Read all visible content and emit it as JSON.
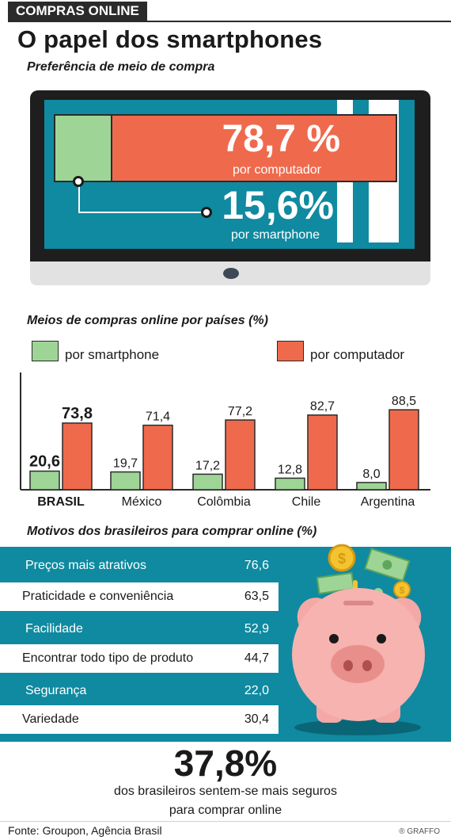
{
  "header": {
    "section_tag": "COMPRAS ONLINE",
    "title": "O papel dos smartphones"
  },
  "preference": {
    "subtitle": "Preferência de meio de compra",
    "computer_pct": "78,7 %",
    "computer_label": "por computador",
    "smartphone_pct": "15,6%",
    "smartphone_label": "por smartphone",
    "computer_value": 78.7,
    "smartphone_value": 15.6
  },
  "chart_data": {
    "type": "bar",
    "title": "Meios de compras online por países (%)",
    "categories": [
      "BRASIL",
      "México",
      "Colômbia",
      "Chile",
      "Argentina"
    ],
    "series": [
      {
        "name": "por smartphone",
        "values": [
          20.6,
          19.7,
          17.2,
          12.8,
          8.0
        ],
        "labels": [
          "20,6",
          "19,7",
          "17,2",
          "12,8",
          "8,0"
        ],
        "color": "#9ed597"
      },
      {
        "name": "por computador",
        "values": [
          73.8,
          71.4,
          77.2,
          82.7,
          88.5
        ],
        "labels": [
          "73,8",
          "71,4",
          "77,2",
          "82,7",
          "88,5"
        ],
        "color": "#ef6a4c"
      }
    ],
    "ylim": [
      0,
      100
    ],
    "legend": "top"
  },
  "reasons": {
    "subtitle": "Motivos dos brasileiros para comprar online (%)",
    "items": [
      {
        "label": "Preços mais atrativos",
        "value": "76,6"
      },
      {
        "label": "Praticidade e conveniência",
        "value": "63,5"
      },
      {
        "label": "Facilidade",
        "value": "52,9"
      },
      {
        "label": "Encontrar  todo tipo de produto",
        "value": "44,7"
      },
      {
        "label": "Segurança",
        "value": "22,0"
      },
      {
        "label": "Variedade",
        "value": "30,4"
      }
    ],
    "illustration": "piggy-bank-icon",
    "accent_color": "#0f8aa0"
  },
  "highlight": {
    "value": "37,8%",
    "line1": "dos brasileiros sentem-se mais seguros",
    "line2": "para comprar online"
  },
  "footer": {
    "source": "Fonte: Groupon, Agência Brasil",
    "logo": "® GRAFFO"
  }
}
